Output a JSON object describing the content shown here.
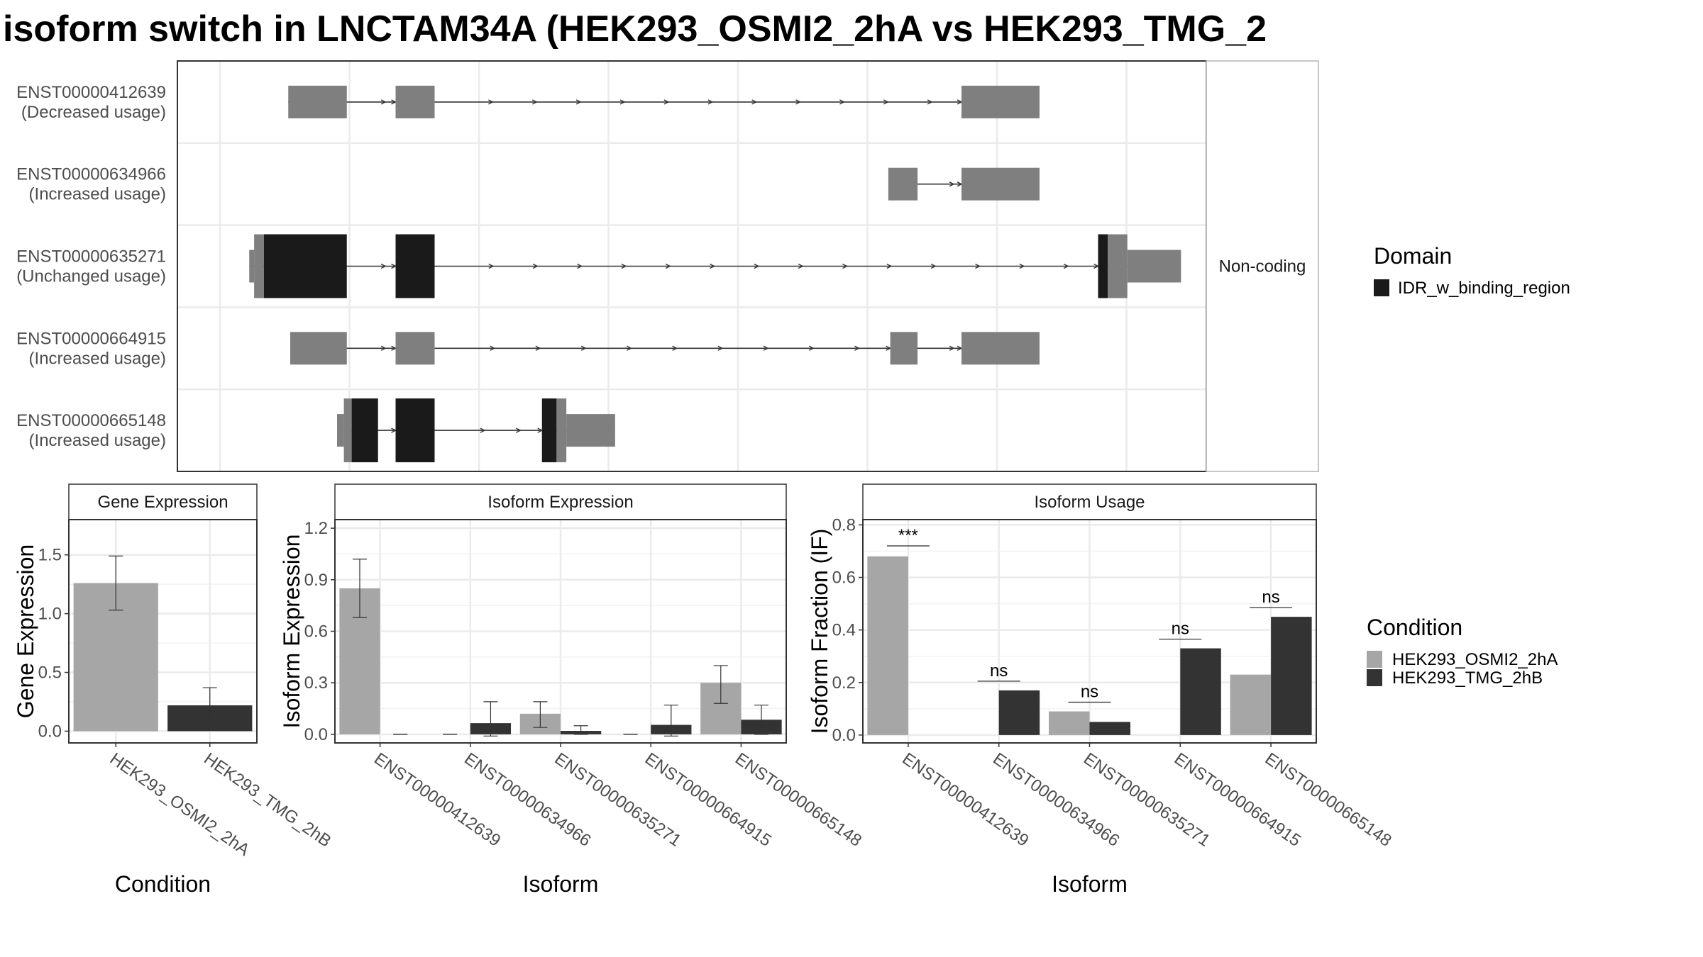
{
  "title": "isoform switch in LNCTAM34A (HEK293_OSMI2_2hA vs HEK293_TMG_2",
  "colors": {
    "noncoding": "#7f7f7f",
    "domain": "#1a1a1a",
    "cond1": "#a6a6a6",
    "cond2": "#333333",
    "grid": "#ebebeb",
    "strip_bg": "#ffffff",
    "panel_border": "#333333"
  },
  "chart_data": [
    {
      "type": "gene-structure",
      "strip_label": "Non-coding",
      "isoforms": [
        {
          "id": "ENST00000412639",
          "usage": "(Decreased usage)",
          "exons": [
            [
              0.7,
              1.3,
              "nc"
            ],
            [
              1.8,
              2.2,
              "nc"
            ],
            [
              7.6,
              8.4,
              "nc"
            ]
          ]
        },
        {
          "id": "ENST00000634966",
          "usage": "(Increased usage)",
          "exons": [
            [
              6.85,
              7.15,
              "nc"
            ],
            [
              7.6,
              8.4,
              "nc"
            ]
          ]
        },
        {
          "id": "ENST00000635271",
          "usage": "(Unchanged usage)",
          "exons": [
            [
              0.3,
              0.35,
              "nc"
            ],
            [
              0.35,
              0.45,
              "nc"
            ],
            [
              0.45,
              1.3,
              "domain"
            ],
            [
              1.8,
              2.2,
              "domain"
            ],
            [
              9.0,
              9.1,
              "domain"
            ],
            [
              9.1,
              9.3,
              "nc"
            ],
            [
              9.3,
              9.85,
              "nc"
            ]
          ]
        },
        {
          "id": "ENST00000664915",
          "usage": "(Increased usage)",
          "exons": [
            [
              0.72,
              1.3,
              "nc"
            ],
            [
              1.8,
              2.2,
              "nc"
            ],
            [
              6.87,
              7.15,
              "nc"
            ],
            [
              7.6,
              8.4,
              "nc"
            ]
          ]
        },
        {
          "id": "ENST00000665148",
          "usage": "(Increased usage)",
          "exons": [
            [
              1.2,
              1.27,
              "nc"
            ],
            [
              1.27,
              1.35,
              "nc"
            ],
            [
              1.35,
              1.62,
              "domain"
            ],
            [
              1.8,
              2.2,
              "domain"
            ],
            [
              3.3,
              3.45,
              "domain"
            ],
            [
              3.45,
              3.55,
              "nc"
            ],
            [
              3.55,
              4.05,
              "nc"
            ]
          ]
        }
      ],
      "legend": {
        "title": "Domain",
        "items": [
          "IDR_w_binding_region"
        ]
      }
    },
    {
      "type": "bar",
      "strip_label": "Gene Expression",
      "xlabel": "Condition",
      "ylabel": "Gene Expression",
      "ylim": [
        -0.1,
        1.8
      ],
      "yticks": [
        0.0,
        0.5,
        1.0,
        1.5
      ],
      "ytick_labels": [
        "0.0",
        "0.5",
        "1.0",
        "1.5"
      ],
      "categories": [
        "HEK293_OSMI2_2hA",
        "HEK293_TMG_2hB"
      ],
      "values": [
        1.26,
        0.22
      ],
      "error": [
        [
          1.03,
          1.49
        ],
        [
          0.07,
          0.37
        ]
      ]
    },
    {
      "type": "bar",
      "strip_label": "Isoform Expression",
      "xlabel": "Isoform",
      "ylabel": "Isoform Expression",
      "ylim": [
        -0.05,
        1.25
      ],
      "yticks": [
        0.0,
        0.3,
        0.6,
        0.9,
        1.2
      ],
      "ytick_labels": [
        "0.0",
        "0.3",
        "0.6",
        "0.9",
        "1.2"
      ],
      "categories": [
        "ENST00000412639",
        "ENST00000634966",
        "ENST00000635271",
        "ENST00000664915",
        "ENST00000665148"
      ],
      "series": [
        {
          "name": "HEK293_OSMI2_2hA",
          "values": [
            0.85,
            0.0,
            0.12,
            0.0,
            0.3
          ],
          "error": [
            [
              0.68,
              1.02
            ],
            [
              0.0,
              0.0
            ],
            [
              0.04,
              0.19
            ],
            [
              0.0,
              0.0
            ],
            [
              0.18,
              0.4
            ]
          ]
        },
        {
          "name": "HEK293_TMG_2hB",
          "values": [
            0.0,
            0.065,
            0.02,
            0.055,
            0.085
          ],
          "error": [
            [
              0.0,
              0.0
            ],
            [
              -0.01,
              0.19
            ],
            [
              0.0,
              0.05
            ],
            [
              -0.01,
              0.17
            ],
            [
              0.0,
              0.17
            ]
          ]
        }
      ]
    },
    {
      "type": "bar",
      "strip_label": "Isoform Usage",
      "xlabel": "Isoform",
      "ylabel": "Isoform Fraction (IF)",
      "ylim": [
        -0.03,
        0.82
      ],
      "yticks": [
        0.0,
        0.2,
        0.4,
        0.6,
        0.8
      ],
      "ytick_labels": [
        "0.0",
        "0.2",
        "0.4",
        "0.6",
        "0.8"
      ],
      "categories": [
        "ENST00000412639",
        "ENST00000634966",
        "ENST00000635271",
        "ENST00000664915",
        "ENST00000665148"
      ],
      "series": [
        {
          "name": "HEK293_OSMI2_2hA",
          "values": [
            0.68,
            0.0,
            0.09,
            0.0,
            0.23
          ]
        },
        {
          "name": "HEK293_TMG_2hB",
          "values": [
            0.0,
            0.17,
            0.05,
            0.33,
            0.45
          ]
        }
      ],
      "significance": [
        {
          "label": "***",
          "y": 0.72
        },
        {
          "label": "ns",
          "y": 0.205
        },
        {
          "label": "ns",
          "y": 0.125
        },
        {
          "label": "ns",
          "y": 0.365
        },
        {
          "label": "ns",
          "y": 0.485
        }
      ]
    }
  ],
  "legend_condition": {
    "title": "Condition",
    "items": [
      "HEK293_OSMI2_2hA",
      "HEK293_TMG_2hB"
    ]
  }
}
